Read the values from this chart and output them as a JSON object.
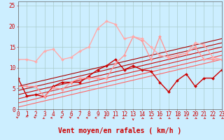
{
  "xlabel": "Vent moyen/en rafales ( km/h )",
  "xlim": [
    0,
    23
  ],
  "ylim": [
    0,
    26
  ],
  "background_color": "#cceeff",
  "grid_color": "#aacccc",
  "x": [
    0,
    1,
    2,
    3,
    4,
    5,
    6,
    7,
    8,
    9,
    10,
    11,
    12,
    13,
    14,
    15,
    16,
    17,
    18,
    19,
    20,
    21,
    22,
    23
  ],
  "lines": [
    {
      "y": [
        0.5,
        1.0,
        1.5,
        2.0,
        2.5,
        3.0,
        3.5,
        4.0,
        4.5,
        5.0,
        5.5,
        6.0,
        6.5,
        7.0,
        7.5,
        8.0,
        8.5,
        9.0,
        9.5,
        10.0,
        10.5,
        11.0,
        11.5,
        12.0
      ],
      "color": "#ff6666",
      "linewidth": 0.8,
      "marker": null
    },
    {
      "y": [
        1.5,
        2.0,
        2.5,
        3.0,
        3.5,
        4.0,
        4.5,
        5.0,
        5.5,
        6.0,
        6.5,
        7.0,
        7.5,
        8.0,
        8.5,
        9.0,
        9.5,
        10.0,
        10.5,
        11.0,
        11.5,
        12.0,
        12.5,
        13.0
      ],
      "color": "#ff4444",
      "linewidth": 0.8,
      "marker": null
    },
    {
      "y": [
        2.5,
        3.0,
        3.5,
        4.0,
        4.5,
        5.0,
        5.5,
        6.0,
        6.5,
        7.0,
        7.5,
        8.0,
        8.5,
        9.0,
        9.5,
        10.0,
        10.5,
        11.0,
        11.5,
        12.0,
        12.5,
        13.0,
        13.5,
        14.0
      ],
      "color": "#dd2222",
      "linewidth": 0.8,
      "marker": null
    },
    {
      "y": [
        3.5,
        4.0,
        4.5,
        5.0,
        5.5,
        6.0,
        6.5,
        7.0,
        7.5,
        8.0,
        8.5,
        9.0,
        9.5,
        10.0,
        10.5,
        11.0,
        11.5,
        12.0,
        12.5,
        13.0,
        13.5,
        14.0,
        14.5,
        15.0
      ],
      "color": "#cc0000",
      "linewidth": 0.8,
      "marker": null
    },
    {
      "y": [
        4.5,
        5.0,
        5.5,
        6.0,
        6.5,
        7.0,
        7.5,
        8.0,
        8.5,
        9.0,
        9.5,
        10.0,
        10.5,
        11.0,
        11.5,
        12.0,
        12.5,
        13.0,
        13.5,
        14.0,
        14.5,
        15.0,
        15.5,
        16.0
      ],
      "color": "#bb0000",
      "linewidth": 0.8,
      "marker": null
    },
    {
      "y": [
        5.5,
        6.0,
        6.5,
        7.0,
        7.5,
        8.0,
        8.5,
        9.0,
        9.5,
        10.0,
        10.5,
        11.0,
        11.5,
        12.0,
        12.5,
        13.0,
        13.5,
        14.0,
        14.5,
        15.0,
        15.5,
        16.0,
        16.5,
        17.0
      ],
      "color": "#aa0000",
      "linewidth": 0.8,
      "marker": null
    },
    {
      "y": [
        7.5,
        3.2,
        3.5,
        3.0,
        5.5,
        6.5,
        6.5,
        6.5,
        8.0,
        9.5,
        10.5,
        12.0,
        9.5,
        10.5,
        9.5,
        9.2,
        6.5,
        4.2,
        7.0,
        8.5,
        5.5,
        7.5,
        7.5,
        9.5
      ],
      "color": "#cc0000",
      "linewidth": 1.0,
      "marker": "D",
      "markersize": 2.0
    },
    {
      "y": [
        5.5,
        5.5,
        5.5,
        3.0,
        5.2,
        4.8,
        6.5,
        7.5,
        7.5,
        7.5,
        7.5,
        11.0,
        13.0,
        17.5,
        16.5,
        12.0,
        17.5,
        12.5,
        13.0,
        13.5,
        15.0,
        12.0,
        12.0,
        12.0
      ],
      "color": "#ff9999",
      "linewidth": 1.0,
      "marker": "D",
      "markersize": 2.0
    },
    {
      "y": [
        12.0,
        12.0,
        11.5,
        14.0,
        14.5,
        12.0,
        12.5,
        14.0,
        15.0,
        19.5,
        21.2,
        20.5,
        17.0,
        17.5,
        17.0,
        15.0,
        13.0,
        12.5,
        13.0,
        13.5,
        16.0,
        15.5,
        12.5,
        12.0
      ],
      "color": "#ffaaaa",
      "linewidth": 1.0,
      "marker": "D",
      "markersize": 2.0
    }
  ],
  "yticks": [
    0,
    5,
    10,
    15,
    20,
    25
  ],
  "xticks": [
    0,
    1,
    2,
    3,
    4,
    5,
    6,
    7,
    8,
    9,
    10,
    11,
    12,
    13,
    14,
    15,
    16,
    17,
    18,
    19,
    20,
    21,
    22,
    23
  ],
  "xlabel_fontsize": 7,
  "tick_fontsize": 5.5,
  "arrow_directions": [
    225,
    180,
    225,
    315,
    270,
    225,
    225,
    270,
    270,
    270,
    270,
    270,
    315,
    0,
    45,
    45,
    45,
    45,
    45,
    45,
    45,
    45,
    45,
    45
  ]
}
